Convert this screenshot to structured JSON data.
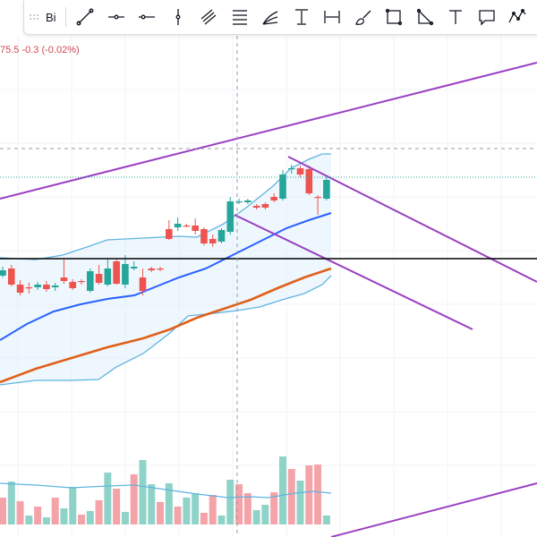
{
  "toolbar": {
    "label": "Bi",
    "tools": [
      "trend-line-icon",
      "horizontal-ray-icon",
      "horizontal-line-icon",
      "vertical-line-icon",
      "parallel-channel-icon",
      "fib-retracement-icon",
      "fib-fan-icon",
      "price-range-icon",
      "date-range-icon",
      "brush-icon",
      "rectangle-icon",
      "triangle-icon",
      "text-icon",
      "callout-icon",
      "path-icon"
    ]
  },
  "readout": {
    "text": "75.5  -0.3 (-0.02%)"
  },
  "colors": {
    "up": "#26a69a",
    "down": "#ef5350",
    "volume_up": "#8fd3c8",
    "volume_down": "#f4a3a8",
    "bollinger": "#5fb4e0",
    "ma_fast": "#2962ff",
    "ma_slow": "#e0601a",
    "drawings": "#9b3fc2",
    "support": "#000000"
  },
  "chart_data": {
    "type": "candlestick",
    "candles": [
      {
        "o": 308,
        "c": 302,
        "h": 310,
        "l": 298
      },
      {
        "o": 300,
        "c": 318,
        "h": 320,
        "l": 296
      },
      {
        "o": 318,
        "c": 327,
        "h": 330,
        "l": 313
      },
      {
        "o": 321,
        "c": 321,
        "h": 328,
        "l": 316
      },
      {
        "o": 321,
        "c": 318,
        "h": 324,
        "l": 315
      },
      {
        "o": 318,
        "c": 323,
        "h": 326,
        "l": 314
      },
      {
        "o": 321,
        "c": 319,
        "h": 325,
        "l": 316
      },
      {
        "o": 310,
        "c": 314,
        "h": 317,
        "l": 290
      },
      {
        "o": 315,
        "c": 322,
        "h": 324,
        "l": 312
      },
      {
        "o": 314,
        "c": 314,
        "h": 318,
        "l": 312
      },
      {
        "o": 325,
        "c": 303,
        "h": 327,
        "l": 300
      },
      {
        "o": 306,
        "c": 316,
        "h": 318,
        "l": 296
      },
      {
        "o": 318,
        "c": 300,
        "h": 320,
        "l": 290
      },
      {
        "o": 292,
        "c": 317,
        "h": 318,
        "l": 290
      },
      {
        "o": 318,
        "c": 295,
        "h": 322,
        "l": 285
      },
      {
        "o": 300,
        "c": 298,
        "h": 302,
        "l": 292
      },
      {
        "o": 310,
        "c": 325,
        "h": 330,
        "l": 300
      },
      {
        "o": 300,
        "c": 302,
        "h": 304,
        "l": 298
      },
      {
        "o": 300,
        "c": 300,
        "h": 303,
        "l": 298
      },
      {
        "o": 256,
        "c": 267,
        "h": 268,
        "l": 246
      },
      {
        "o": 254,
        "c": 250,
        "h": 258,
        "l": 243
      },
      {
        "o": 252,
        "c": 252,
        "h": 254,
        "l": 250
      },
      {
        "o": 252,
        "c": 258,
        "h": 262,
        "l": 244
      },
      {
        "o": 256,
        "c": 272,
        "h": 274,
        "l": 254
      },
      {
        "o": 267,
        "c": 272,
        "h": 276,
        "l": 262
      },
      {
        "o": 270,
        "c": 257,
        "h": 272,
        "l": 255
      },
      {
        "o": 259,
        "c": 225,
        "h": 262,
        "l": 220
      },
      {
        "o": 226,
        "c": 225,
        "h": 228,
        "l": 222
      },
      {
        "o": 226,
        "c": 224,
        "h": 228,
        "l": 222
      },
      {
        "o": 230,
        "c": 232,
        "h": 234,
        "l": 228
      },
      {
        "o": 228,
        "c": 232,
        "h": 234,
        "l": 226
      },
      {
        "o": 220,
        "c": 224,
        "h": 226,
        "l": 216
      },
      {
        "o": 222,
        "c": 195,
        "h": 224,
        "l": 190
      },
      {
        "o": 189,
        "c": 188,
        "h": 194,
        "l": 184
      },
      {
        "o": 188,
        "c": 195,
        "h": 198,
        "l": 185
      },
      {
        "o": 189,
        "c": 216,
        "h": 218,
        "l": 185
      },
      {
        "o": 220,
        "c": 220,
        "h": 240,
        "l": 218
      },
      {
        "o": 222,
        "c": 201,
        "h": 224,
        "l": 198
      }
    ],
    "volume": [
      30,
      48,
      26,
      10,
      20,
      8,
      30,
      18,
      42,
      11,
      15,
      27,
      58,
      40,
      14,
      56,
      72,
      45,
      25,
      46,
      20,
      30,
      35,
      13,
      33,
      10,
      50,
      45,
      35,
      16,
      22,
      36,
      76,
      62,
      49,
      66,
      67,
      10
    ],
    "volume_colors": [
      "d",
      "u",
      "d",
      "u",
      "d",
      "u",
      "d",
      "u",
      "u",
      "d",
      "u",
      "d",
      "u",
      "d",
      "u",
      "d",
      "u",
      "u",
      "d",
      "u",
      "d",
      "u",
      "u",
      "d",
      "d",
      "u",
      "u",
      "d",
      "d",
      "u",
      "u",
      "d",
      "u",
      "d",
      "u",
      "d",
      "d",
      "u"
    ]
  }
}
